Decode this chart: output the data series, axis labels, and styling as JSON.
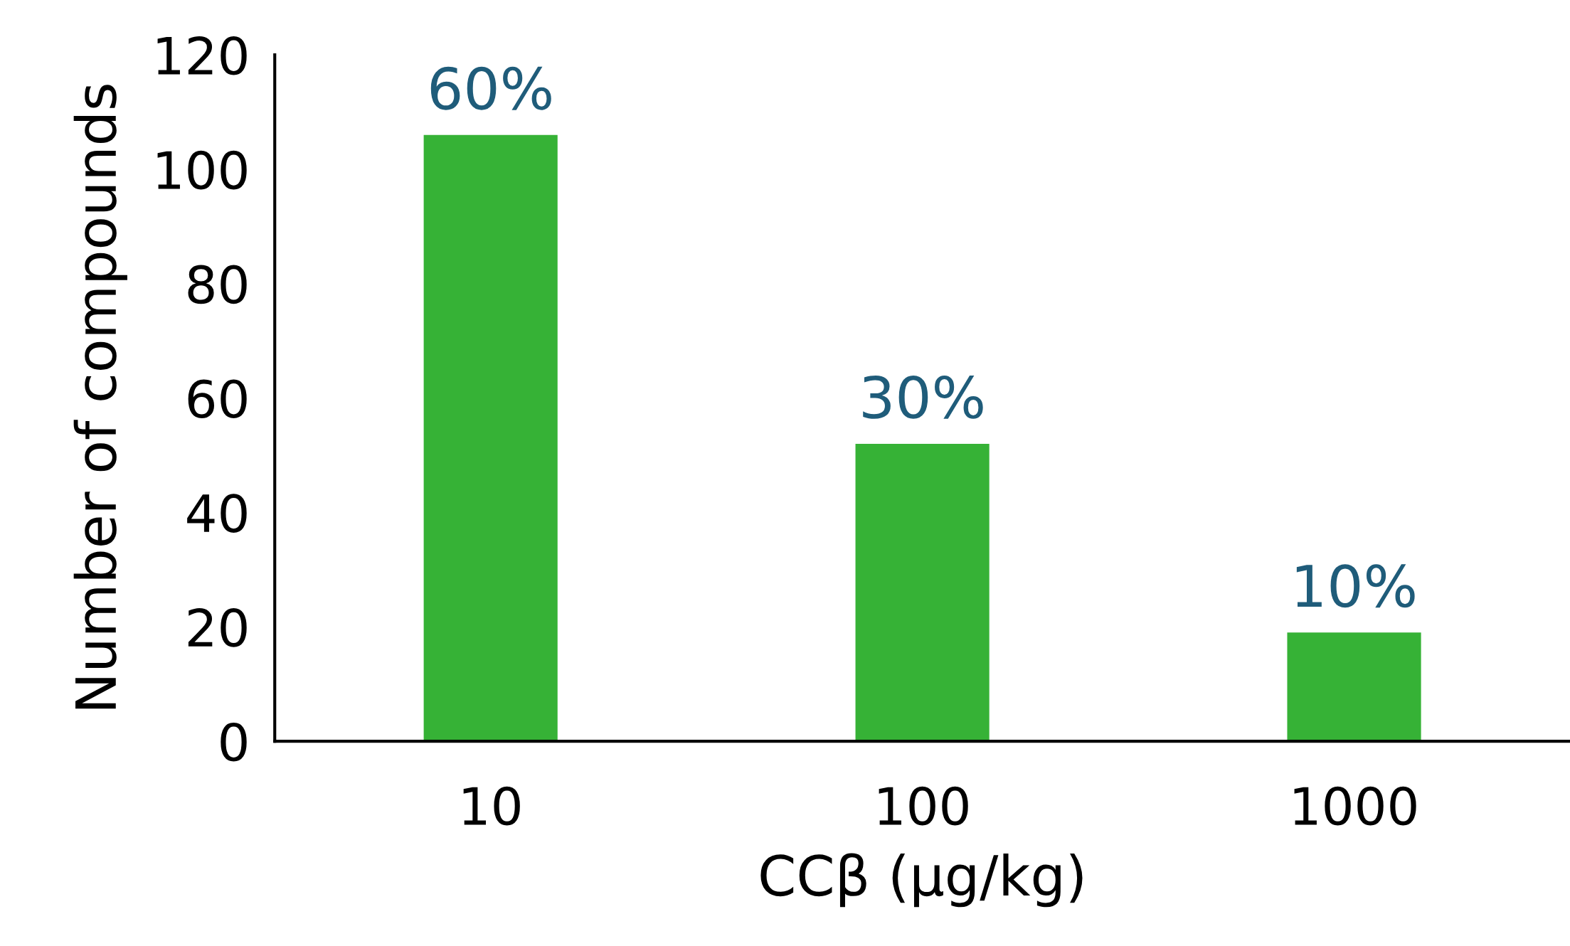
{
  "chart_data": {
    "type": "bar",
    "xlabel": "CCβ (µg/kg)",
    "ylabel": "Number of compounds",
    "categories": [
      "10",
      "100",
      "1000"
    ],
    "values": [
      106,
      52,
      19
    ],
    "annotations": [
      {
        "text": "60%",
        "x": "10",
        "y": 106
      },
      {
        "text": "30%",
        "x": "100",
        "y": 52
      },
      {
        "text": "10%",
        "x": "1000",
        "y": 19
      }
    ],
    "color": "#36b236",
    "ylim": [
      0,
      120
    ],
    "yticks": [
      0,
      20,
      40,
      60,
      80,
      100,
      120
    ],
    "grid": false,
    "legend": false
  }
}
